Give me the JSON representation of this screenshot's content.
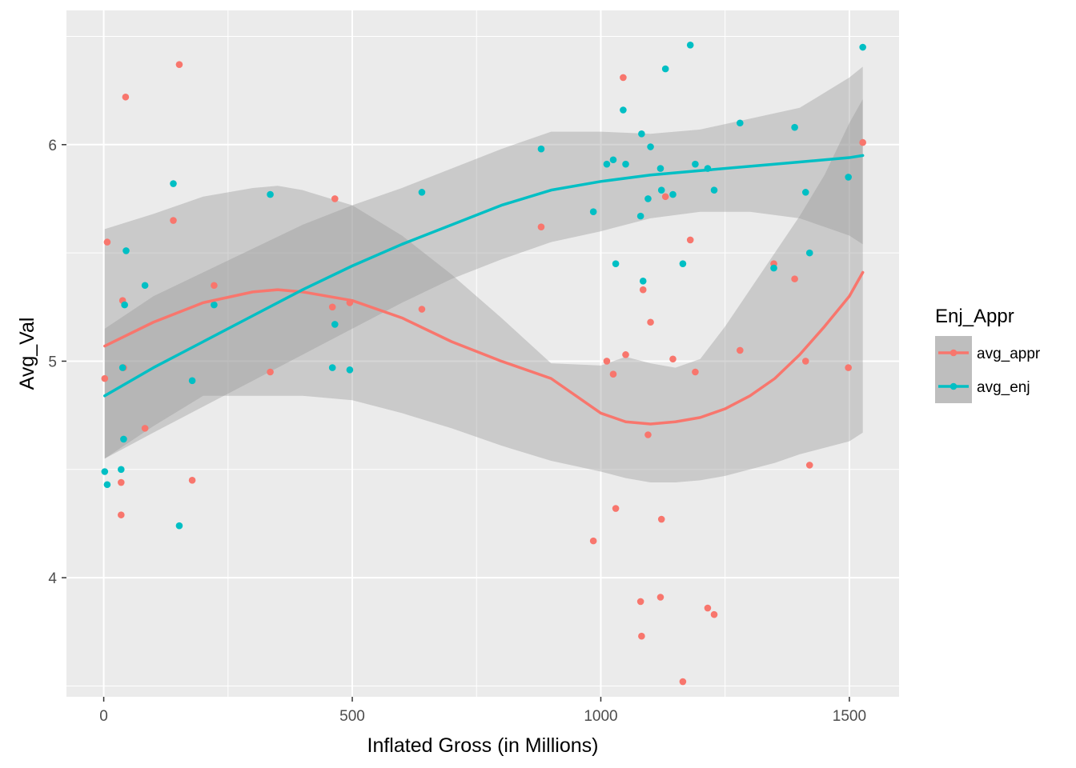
{
  "chart_data": {
    "type": "scatter",
    "title": "",
    "xlabel": "Inflated Gross (in Millions)",
    "ylabel": "Avg_Val",
    "xlim": [
      -75,
      1600
    ],
    "ylim": [
      3.45,
      6.62
    ],
    "x_ticks": [
      0,
      500,
      1000,
      1500
    ],
    "x_tick_labels": [
      "0",
      "500",
      "1000",
      "1500"
    ],
    "y_ticks": [
      4,
      5,
      6
    ],
    "y_tick_labels": [
      "4",
      "5",
      "6"
    ],
    "grid": true,
    "legend": {
      "title": "Enj_Appr",
      "position": "right",
      "entries": [
        {
          "label": "avg_appr",
          "color": "#F8766D"
        },
        {
          "label": "avg_enj",
          "color": "#00BFC4"
        }
      ]
    },
    "panel_background": "#EBEBEB",
    "series": [
      {
        "name": "avg_appr",
        "color": "#F8766D",
        "points": [
          [
            2,
            4.92
          ],
          [
            7,
            5.55
          ],
          [
            35,
            4.44
          ],
          [
            35,
            4.29
          ],
          [
            38,
            5.28
          ],
          [
            40,
            4.97
          ],
          [
            44,
            6.22
          ],
          [
            83,
            4.69
          ],
          [
            140,
            5.65
          ],
          [
            152,
            6.37
          ],
          [
            178,
            4.45
          ],
          [
            222,
            5.35
          ],
          [
            335,
            4.95
          ],
          [
            460,
            5.25
          ],
          [
            465,
            5.75
          ],
          [
            495,
            5.27
          ],
          [
            640,
            5.24
          ],
          [
            880,
            5.62
          ],
          [
            985,
            4.17
          ],
          [
            1012,
            5.0
          ],
          [
            1025,
            4.94
          ],
          [
            1030,
            4.32
          ],
          [
            1045,
            6.31
          ],
          [
            1050,
            5.03
          ],
          [
            1080,
            3.89
          ],
          [
            1082,
            3.73
          ],
          [
            1085,
            5.33
          ],
          [
            1095,
            4.66
          ],
          [
            1100,
            5.18
          ],
          [
            1120,
            3.91
          ],
          [
            1122,
            4.27
          ],
          [
            1130,
            5.76
          ],
          [
            1145,
            5.01
          ],
          [
            1165,
            3.52
          ],
          [
            1180,
            5.56
          ],
          [
            1190,
            4.95
          ],
          [
            1215,
            3.86
          ],
          [
            1228,
            3.83
          ],
          [
            1280,
            5.05
          ],
          [
            1348,
            5.45
          ],
          [
            1390,
            5.38
          ],
          [
            1412,
            5.0
          ],
          [
            1420,
            4.52
          ],
          [
            1498,
            4.97
          ],
          [
            1527,
            6.01
          ]
        ],
        "smooth": [
          [
            2,
            5.07
          ],
          [
            100,
            5.18
          ],
          [
            200,
            5.27
          ],
          [
            300,
            5.32
          ],
          [
            350,
            5.33
          ],
          [
            400,
            5.32
          ],
          [
            500,
            5.28
          ],
          [
            600,
            5.2
          ],
          [
            700,
            5.09
          ],
          [
            800,
            5.0
          ],
          [
            900,
            4.92
          ],
          [
            1000,
            4.76
          ],
          [
            1050,
            4.72
          ],
          [
            1100,
            4.71
          ],
          [
            1150,
            4.72
          ],
          [
            1200,
            4.74
          ],
          [
            1250,
            4.78
          ],
          [
            1300,
            4.84
          ],
          [
            1350,
            4.92
          ],
          [
            1400,
            5.03
          ],
          [
            1450,
            5.16
          ],
          [
            1500,
            5.3
          ],
          [
            1527,
            5.41
          ]
        ],
        "ci_upper": [
          [
            2,
            5.61
          ],
          [
            100,
            5.68
          ],
          [
            200,
            5.76
          ],
          [
            300,
            5.8
          ],
          [
            350,
            5.81
          ],
          [
            400,
            5.79
          ],
          [
            500,
            5.72
          ],
          [
            600,
            5.58
          ],
          [
            700,
            5.4
          ],
          [
            800,
            5.2
          ],
          [
            900,
            4.99
          ],
          [
            1000,
            4.98
          ],
          [
            1050,
            5.02
          ],
          [
            1100,
            4.99
          ],
          [
            1150,
            4.97
          ],
          [
            1200,
            5.01
          ],
          [
            1250,
            5.16
          ],
          [
            1300,
            5.33
          ],
          [
            1350,
            5.5
          ],
          [
            1400,
            5.67
          ],
          [
            1450,
            5.86
          ],
          [
            1500,
            6.1
          ],
          [
            1527,
            6.21
          ]
        ],
        "ci_lower": [
          [
            2,
            4.55
          ],
          [
            100,
            4.7
          ],
          [
            200,
            4.84
          ],
          [
            300,
            4.84
          ],
          [
            400,
            4.84
          ],
          [
            500,
            4.82
          ],
          [
            600,
            4.76
          ],
          [
            700,
            4.69
          ],
          [
            800,
            4.61
          ],
          [
            900,
            4.54
          ],
          [
            1000,
            4.49
          ],
          [
            1050,
            4.46
          ],
          [
            1100,
            4.44
          ],
          [
            1150,
            4.44
          ],
          [
            1200,
            4.45
          ],
          [
            1250,
            4.47
          ],
          [
            1300,
            4.5
          ],
          [
            1350,
            4.53
          ],
          [
            1400,
            4.57
          ],
          [
            1450,
            4.6
          ],
          [
            1500,
            4.63
          ],
          [
            1527,
            4.67
          ]
        ]
      },
      {
        "name": "avg_enj",
        "color": "#00BFC4",
        "points": [
          [
            2,
            4.49
          ],
          [
            7,
            4.43
          ],
          [
            35,
            4.5
          ],
          [
            38,
            4.97
          ],
          [
            40,
            4.64
          ],
          [
            42,
            5.26
          ],
          [
            45,
            5.51
          ],
          [
            83,
            5.35
          ],
          [
            140,
            5.82
          ],
          [
            152,
            4.24
          ],
          [
            178,
            4.91
          ],
          [
            222,
            5.26
          ],
          [
            335,
            5.77
          ],
          [
            460,
            4.97
          ],
          [
            465,
            5.17
          ],
          [
            495,
            4.96
          ],
          [
            640,
            5.78
          ],
          [
            880,
            5.98
          ],
          [
            985,
            5.69
          ],
          [
            1012,
            5.91
          ],
          [
            1025,
            5.93
          ],
          [
            1030,
            5.45
          ],
          [
            1045,
            6.16
          ],
          [
            1050,
            5.91
          ],
          [
            1080,
            5.67
          ],
          [
            1082,
            6.05
          ],
          [
            1085,
            5.37
          ],
          [
            1095,
            5.75
          ],
          [
            1100,
            5.99
          ],
          [
            1120,
            5.89
          ],
          [
            1122,
            5.79
          ],
          [
            1130,
            6.35
          ],
          [
            1145,
            5.77
          ],
          [
            1165,
            5.45
          ],
          [
            1180,
            6.46
          ],
          [
            1190,
            5.91
          ],
          [
            1215,
            5.89
          ],
          [
            1228,
            5.79
          ],
          [
            1280,
            6.1
          ],
          [
            1348,
            5.43
          ],
          [
            1390,
            6.08
          ],
          [
            1412,
            5.78
          ],
          [
            1420,
            5.5
          ],
          [
            1498,
            5.85
          ],
          [
            1527,
            6.45
          ]
        ],
        "smooth": [
          [
            2,
            4.84
          ],
          [
            100,
            4.97
          ],
          [
            200,
            5.09
          ],
          [
            300,
            5.21
          ],
          [
            400,
            5.33
          ],
          [
            500,
            5.44
          ],
          [
            600,
            5.54
          ],
          [
            700,
            5.63
          ],
          [
            800,
            5.72
          ],
          [
            900,
            5.79
          ],
          [
            1000,
            5.83
          ],
          [
            1100,
            5.86
          ],
          [
            1200,
            5.88
          ],
          [
            1300,
            5.9
          ],
          [
            1400,
            5.92
          ],
          [
            1500,
            5.94
          ],
          [
            1527,
            5.95
          ]
        ],
        "ci_upper": [
          [
            2,
            5.15
          ],
          [
            100,
            5.3
          ],
          [
            200,
            5.41
          ],
          [
            300,
            5.52
          ],
          [
            400,
            5.63
          ],
          [
            500,
            5.72
          ],
          [
            600,
            5.8
          ],
          [
            700,
            5.89
          ],
          [
            800,
            5.98
          ],
          [
            900,
            6.06
          ],
          [
            1000,
            6.06
          ],
          [
            1100,
            6.05
          ],
          [
            1200,
            6.07
          ],
          [
            1300,
            6.12
          ],
          [
            1400,
            6.17
          ],
          [
            1450,
            6.24
          ],
          [
            1500,
            6.31
          ],
          [
            1527,
            6.36
          ]
        ],
        "ci_lower": [
          [
            2,
            4.55
          ],
          [
            100,
            4.67
          ],
          [
            200,
            4.79
          ],
          [
            300,
            4.91
          ],
          [
            400,
            5.03
          ],
          [
            500,
            5.15
          ],
          [
            600,
            5.27
          ],
          [
            700,
            5.38
          ],
          [
            800,
            5.47
          ],
          [
            900,
            5.55
          ],
          [
            1000,
            5.6
          ],
          [
            1100,
            5.66
          ],
          [
            1200,
            5.69
          ],
          [
            1300,
            5.69
          ],
          [
            1400,
            5.66
          ],
          [
            1450,
            5.62
          ],
          [
            1500,
            5.58
          ],
          [
            1527,
            5.54
          ]
        ]
      }
    ]
  }
}
